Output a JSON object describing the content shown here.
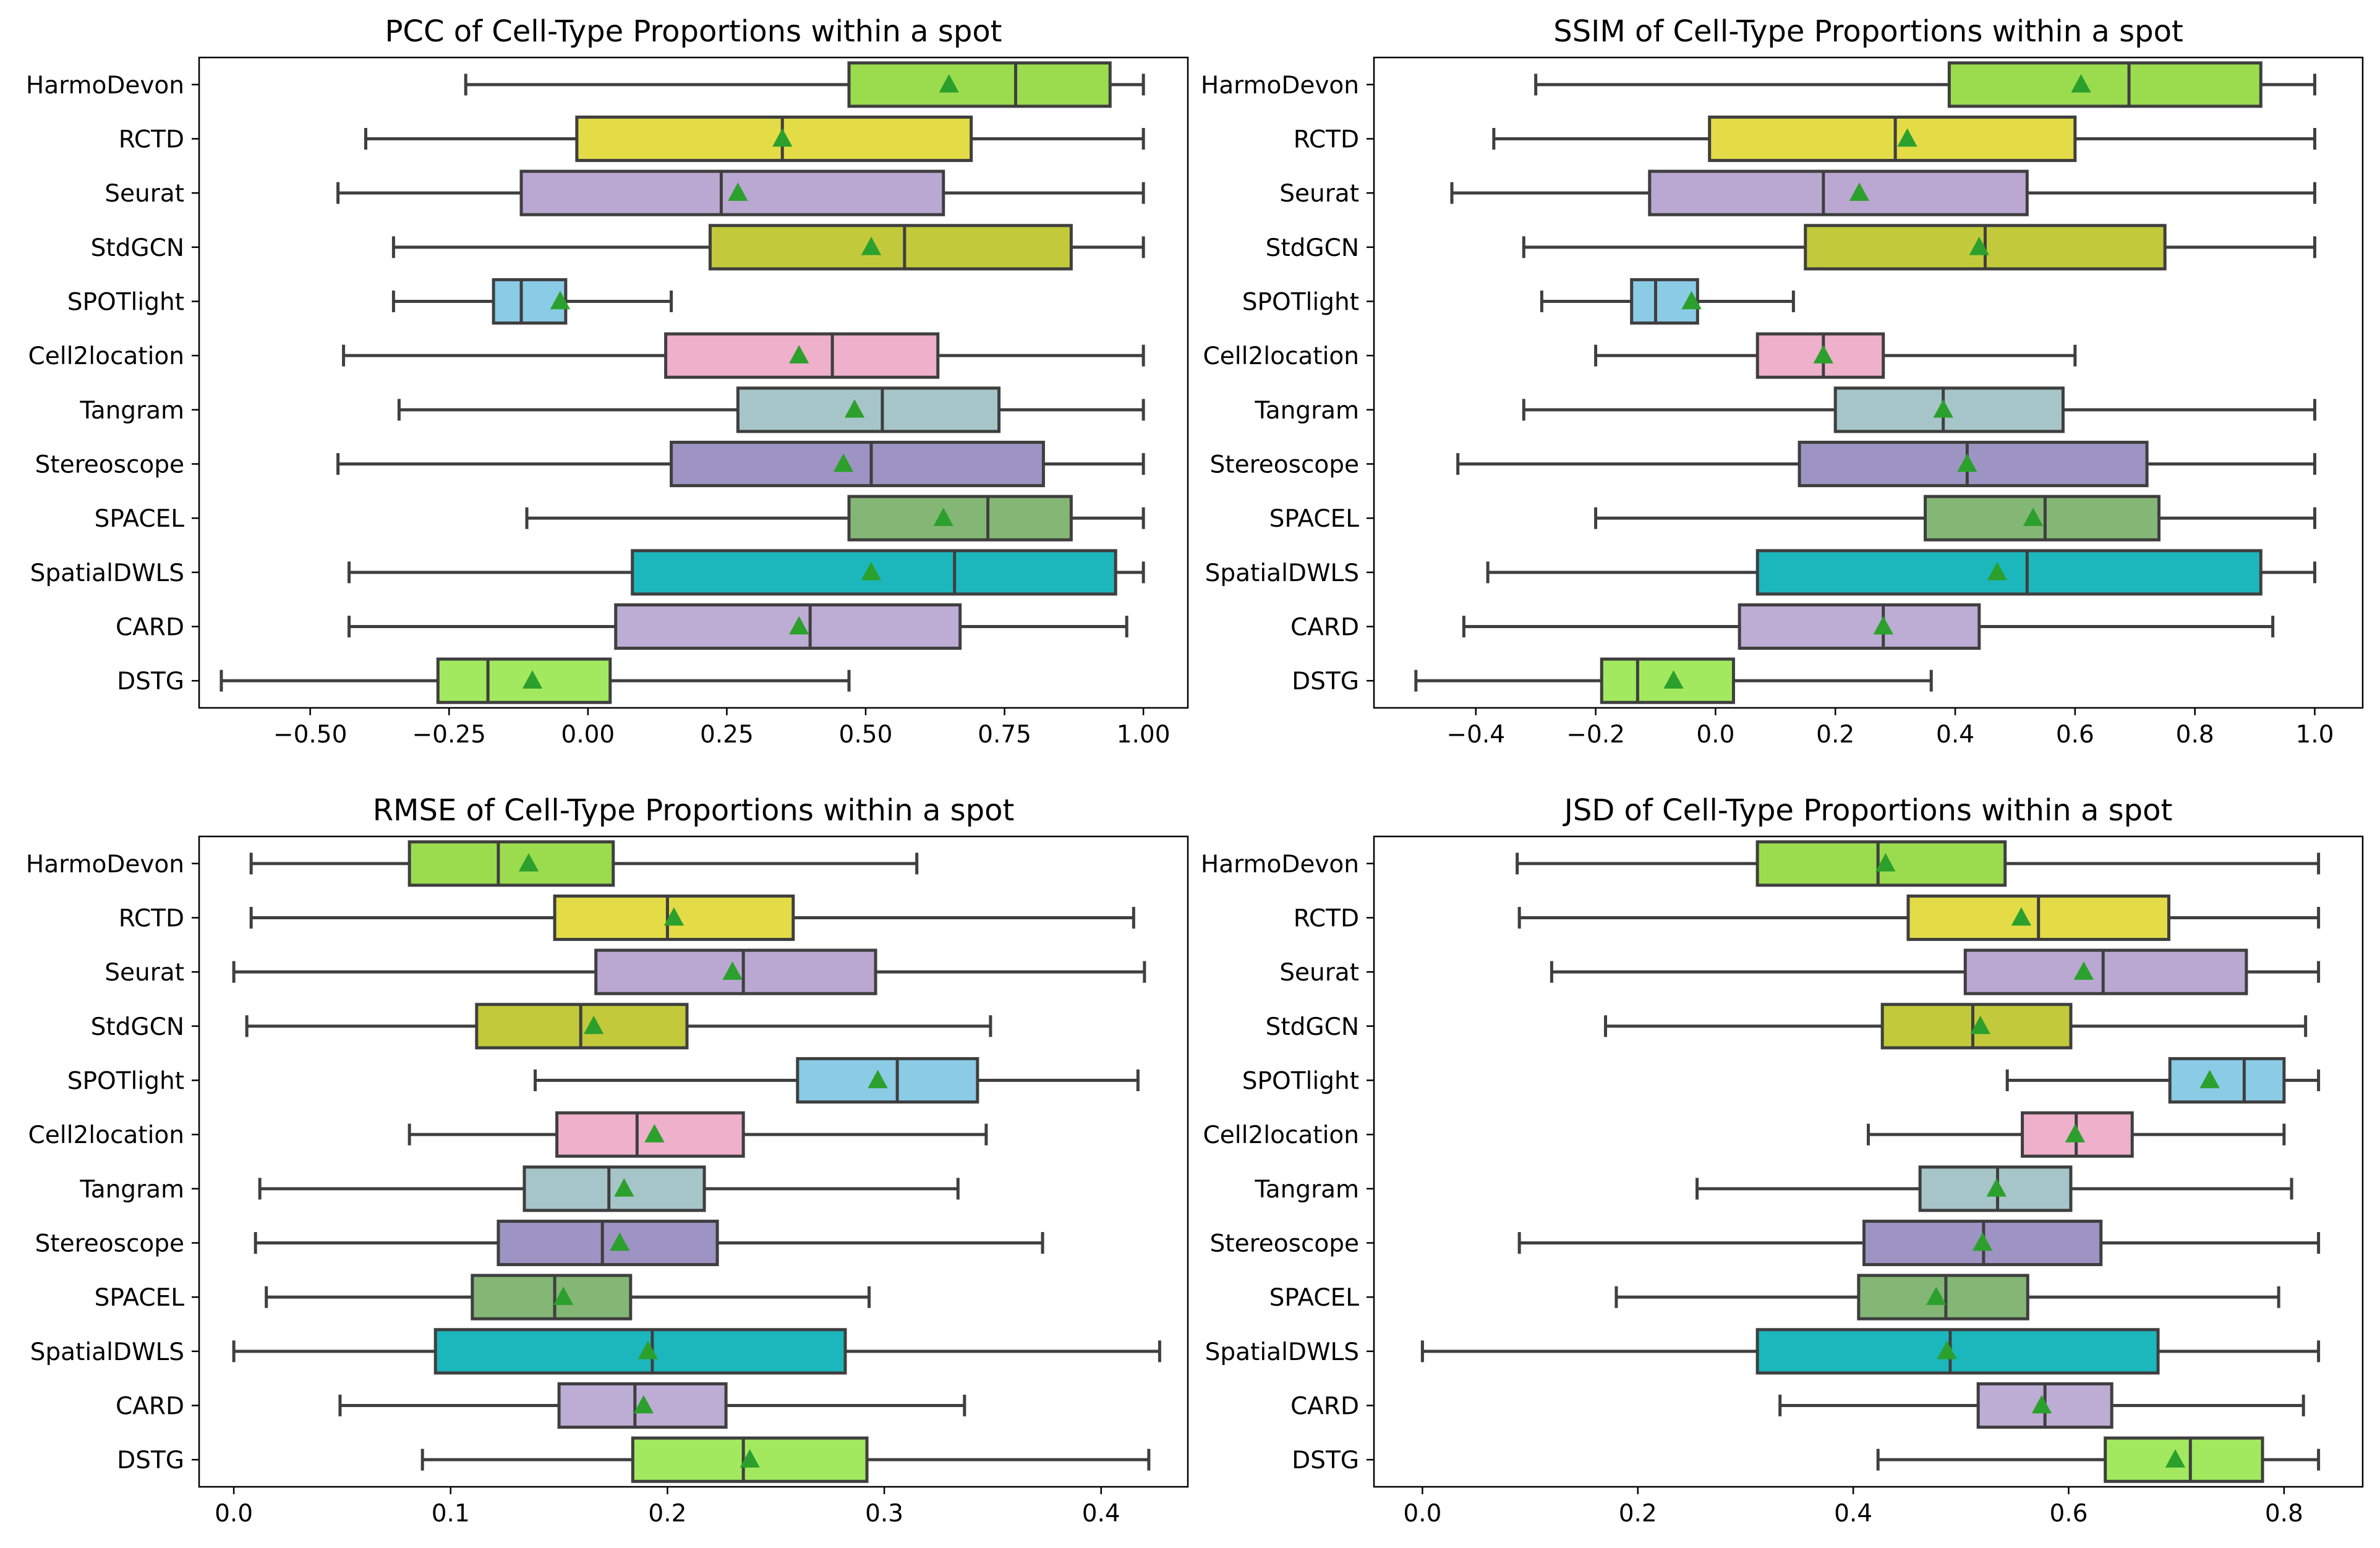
{
  "chart_data": [
    {
      "type": "box",
      "title": "PCC of Cell-Type Proportions within a spot",
      "xlim": [
        -0.7,
        1.08
      ],
      "xticks": [
        -0.5,
        -0.25,
        0.0,
        0.25,
        0.5,
        0.75,
        1.0
      ],
      "xtick_labels": [
        "−0.50",
        "−0.25",
        "0.00",
        "0.25",
        "0.50",
        "0.75",
        "1.00"
      ],
      "series": [
        {
          "label": "HarmoDevon",
          "color": "#9bdc4e",
          "whislo": -0.22,
          "q1": 0.47,
          "median": 0.77,
          "q3": 0.94,
          "whishi": 1.0,
          "mean": 0.65
        },
        {
          "label": "RCTD",
          "color": "#e3dc47",
          "whislo": -0.4,
          "q1": -0.02,
          "median": 0.35,
          "q3": 0.69,
          "whishi": 1.0,
          "mean": 0.35
        },
        {
          "label": "Seurat",
          "color": "#baa8d2",
          "whislo": -0.45,
          "q1": -0.12,
          "median": 0.24,
          "q3": 0.64,
          "whishi": 1.0,
          "mean": 0.27
        },
        {
          "label": "StdGCN",
          "color": "#c2ca3b",
          "whislo": -0.35,
          "q1": 0.22,
          "median": 0.57,
          "q3": 0.87,
          "whishi": 1.0,
          "mean": 0.51
        },
        {
          "label": "SPOTlight",
          "color": "#8acbe6",
          "whislo": -0.35,
          "q1": -0.17,
          "median": -0.12,
          "q3": -0.04,
          "whishi": 0.15,
          "mean": -0.05
        },
        {
          "label": "Cell2location",
          "color": "#eeb0ca",
          "whislo": -0.44,
          "q1": 0.14,
          "median": 0.44,
          "q3": 0.63,
          "whishi": 1.0,
          "mean": 0.38
        },
        {
          "label": "Tangram",
          "color": "#a6c5c9",
          "whislo": -0.34,
          "q1": 0.27,
          "median": 0.53,
          "q3": 0.74,
          "whishi": 1.0,
          "mean": 0.48
        },
        {
          "label": "Stereoscope",
          "color": "#9d94c3",
          "whislo": -0.45,
          "q1": 0.15,
          "median": 0.51,
          "q3": 0.82,
          "whishi": 1.0,
          "mean": 0.46
        },
        {
          "label": "SPACEL",
          "color": "#84b776",
          "whislo": -0.11,
          "q1": 0.47,
          "median": 0.72,
          "q3": 0.87,
          "whishi": 1.0,
          "mean": 0.64
        },
        {
          "label": "SpatialDWLS",
          "color": "#1cb7bd",
          "whislo": -0.43,
          "q1": 0.08,
          "median": 0.66,
          "q3": 0.95,
          "whishi": 1.0,
          "mean": 0.51
        },
        {
          "label": "CARD",
          "color": "#bdadd5",
          "whislo": -0.43,
          "q1": 0.05,
          "median": 0.4,
          "q3": 0.67,
          "whishi": 0.97,
          "mean": 0.38
        },
        {
          "label": "DSTG",
          "color": "#a2e95f",
          "whislo": -0.66,
          "q1": -0.27,
          "median": -0.18,
          "q3": 0.04,
          "whishi": 0.47,
          "mean": -0.1
        }
      ]
    },
    {
      "type": "box",
      "title": "SSIM of Cell-Type Proportions within a spot",
      "xlim": [
        -0.57,
        1.08
      ],
      "xticks": [
        -0.4,
        -0.2,
        0.0,
        0.2,
        0.4,
        0.6,
        0.8,
        1.0
      ],
      "xtick_labels": [
        "−0.4",
        "−0.2",
        "0.0",
        "0.2",
        "0.4",
        "0.6",
        "0.8",
        "1.0"
      ],
      "series": [
        {
          "label": "HarmoDevon",
          "color": "#9bdc4e",
          "whislo": -0.3,
          "q1": 0.39,
          "median": 0.69,
          "q3": 0.91,
          "whishi": 1.0,
          "mean": 0.61
        },
        {
          "label": "RCTD",
          "color": "#e3dc47",
          "whislo": -0.37,
          "q1": -0.01,
          "median": 0.3,
          "q3": 0.6,
          "whishi": 1.0,
          "mean": 0.32
        },
        {
          "label": "Seurat",
          "color": "#baa8d2",
          "whislo": -0.44,
          "q1": -0.11,
          "median": 0.18,
          "q3": 0.52,
          "whishi": 1.0,
          "mean": 0.24
        },
        {
          "label": "StdGCN",
          "color": "#c2ca3b",
          "whislo": -0.32,
          "q1": 0.15,
          "median": 0.45,
          "q3": 0.75,
          "whishi": 1.0,
          "mean": 0.44
        },
        {
          "label": "SPOTlight",
          "color": "#8acbe6",
          "whislo": -0.29,
          "q1": -0.14,
          "median": -0.1,
          "q3": -0.03,
          "whishi": 0.13,
          "mean": -0.04
        },
        {
          "label": "Cell2location",
          "color": "#eeb0ca",
          "whislo": -0.2,
          "q1": 0.07,
          "median": 0.18,
          "q3": 0.28,
          "whishi": 0.6,
          "mean": 0.18
        },
        {
          "label": "Tangram",
          "color": "#a6c5c9",
          "whislo": -0.32,
          "q1": 0.2,
          "median": 0.38,
          "q3": 0.58,
          "whishi": 1.0,
          "mean": 0.38
        },
        {
          "label": "Stereoscope",
          "color": "#9d94c3",
          "whislo": -0.43,
          "q1": 0.14,
          "median": 0.42,
          "q3": 0.72,
          "whishi": 1.0,
          "mean": 0.42
        },
        {
          "label": "SPACEL",
          "color": "#84b776",
          "whislo": -0.2,
          "q1": 0.35,
          "median": 0.55,
          "q3": 0.74,
          "whishi": 1.0,
          "mean": 0.53
        },
        {
          "label": "SpatialDWLS",
          "color": "#1cb7bd",
          "whislo": -0.38,
          "q1": 0.07,
          "median": 0.52,
          "q3": 0.91,
          "whishi": 1.0,
          "mean": 0.47
        },
        {
          "label": "CARD",
          "color": "#bdadd5",
          "whislo": -0.42,
          "q1": 0.04,
          "median": 0.28,
          "q3": 0.44,
          "whishi": 0.93,
          "mean": 0.28
        },
        {
          "label": "DSTG",
          "color": "#a2e95f",
          "whislo": -0.5,
          "q1": -0.19,
          "median": -0.13,
          "q3": 0.03,
          "whishi": 0.36,
          "mean": -0.07
        }
      ]
    },
    {
      "type": "box",
      "title": "RMSE of Cell-Type Proportions within a spot",
      "xlim": [
        -0.016,
        0.44
      ],
      "xticks": [
        0.0,
        0.1,
        0.2,
        0.3,
        0.4
      ],
      "xtick_labels": [
        "0.0",
        "0.1",
        "0.2",
        "0.3",
        "0.4"
      ],
      "series": [
        {
          "label": "HarmoDevon",
          "color": "#9bdc4e",
          "whislo": 0.008,
          "q1": 0.081,
          "median": 0.122,
          "q3": 0.175,
          "whishi": 0.315,
          "mean": 0.136
        },
        {
          "label": "RCTD",
          "color": "#e3dc47",
          "whislo": 0.008,
          "q1": 0.148,
          "median": 0.2,
          "q3": 0.258,
          "whishi": 0.415,
          "mean": 0.203
        },
        {
          "label": "Seurat",
          "color": "#baa8d2",
          "whislo": 0.0,
          "q1": 0.167,
          "median": 0.235,
          "q3": 0.296,
          "whishi": 0.42,
          "mean": 0.23
        },
        {
          "label": "StdGCN",
          "color": "#c2ca3b",
          "whislo": 0.006,
          "q1": 0.112,
          "median": 0.16,
          "q3": 0.209,
          "whishi": 0.349,
          "mean": 0.166
        },
        {
          "label": "SPOTlight",
          "color": "#8acbe6",
          "whislo": 0.139,
          "q1": 0.26,
          "median": 0.306,
          "q3": 0.343,
          "whishi": 0.417,
          "mean": 0.297
        },
        {
          "label": "Cell2location",
          "color": "#eeb0ca",
          "whislo": 0.081,
          "q1": 0.149,
          "median": 0.186,
          "q3": 0.235,
          "whishi": 0.347,
          "mean": 0.194
        },
        {
          "label": "Tangram",
          "color": "#a6c5c9",
          "whislo": 0.012,
          "q1": 0.134,
          "median": 0.173,
          "q3": 0.217,
          "whishi": 0.334,
          "mean": 0.18
        },
        {
          "label": "Stereoscope",
          "color": "#9d94c3",
          "whislo": 0.01,
          "q1": 0.122,
          "median": 0.17,
          "q3": 0.223,
          "whishi": 0.373,
          "mean": 0.178
        },
        {
          "label": "SPACEL",
          "color": "#84b776",
          "whislo": 0.015,
          "q1": 0.11,
          "median": 0.148,
          "q3": 0.183,
          "whishi": 0.293,
          "mean": 0.152
        },
        {
          "label": "SpatialDWLS",
          "color": "#1cb7bd",
          "whislo": 0.0,
          "q1": 0.093,
          "median": 0.193,
          "q3": 0.282,
          "whishi": 0.427,
          "mean": 0.191
        },
        {
          "label": "CARD",
          "color": "#bdadd5",
          "whislo": 0.049,
          "q1": 0.15,
          "median": 0.185,
          "q3": 0.227,
          "whishi": 0.337,
          "mean": 0.189
        },
        {
          "label": "DSTG",
          "color": "#a2e95f",
          "whislo": 0.087,
          "q1": 0.184,
          "median": 0.235,
          "q3": 0.292,
          "whishi": 0.422,
          "mean": 0.238
        }
      ]
    },
    {
      "type": "box",
      "title": "JSD of Cell-Type Proportions within a spot",
      "xlim": [
        -0.045,
        0.873
      ],
      "xticks": [
        0.0,
        0.2,
        0.4,
        0.6,
        0.8
      ],
      "xtick_labels": [
        "0.0",
        "0.2",
        "0.4",
        "0.6",
        "0.8"
      ],
      "series": [
        {
          "label": "HarmoDevon",
          "color": "#9bdc4e",
          "whislo": 0.088,
          "q1": 0.311,
          "median": 0.423,
          "q3": 0.541,
          "whishi": 0.832,
          "mean": 0.43
        },
        {
          "label": "RCTD",
          "color": "#e3dc47",
          "whislo": 0.09,
          "q1": 0.451,
          "median": 0.572,
          "q3": 0.693,
          "whishi": 0.832,
          "mean": 0.556
        },
        {
          "label": "Seurat",
          "color": "#baa8d2",
          "whislo": 0.12,
          "q1": 0.504,
          "median": 0.632,
          "q3": 0.765,
          "whishi": 0.832,
          "mean": 0.614
        },
        {
          "label": "StdGCN",
          "color": "#c2ca3b",
          "whislo": 0.17,
          "q1": 0.427,
          "median": 0.511,
          "q3": 0.602,
          "whishi": 0.82,
          "mean": 0.518
        },
        {
          "label": "SPOTlight",
          "color": "#8acbe6",
          "whislo": 0.543,
          "q1": 0.694,
          "median": 0.763,
          "q3": 0.8,
          "whishi": 0.832,
          "mean": 0.731
        },
        {
          "label": "Cell2location",
          "color": "#eeb0ca",
          "whislo": 0.414,
          "q1": 0.557,
          "median": 0.607,
          "q3": 0.659,
          "whishi": 0.8,
          "mean": 0.606
        },
        {
          "label": "Tangram",
          "color": "#a6c5c9",
          "whislo": 0.255,
          "q1": 0.462,
          "median": 0.534,
          "q3": 0.602,
          "whishi": 0.807,
          "mean": 0.533
        },
        {
          "label": "Stereoscope",
          "color": "#9d94c3",
          "whislo": 0.09,
          "q1": 0.41,
          "median": 0.521,
          "q3": 0.63,
          "whishi": 0.832,
          "mean": 0.52
        },
        {
          "label": "SPACEL",
          "color": "#84b776",
          "whislo": 0.18,
          "q1": 0.405,
          "median": 0.486,
          "q3": 0.562,
          "whishi": 0.795,
          "mean": 0.477
        },
        {
          "label": "SpatialDWLS",
          "color": "#1cb7bd",
          "whislo": 0.0,
          "q1": 0.311,
          "median": 0.49,
          "q3": 0.683,
          "whishi": 0.832,
          "mean": 0.487
        },
        {
          "label": "CARD",
          "color": "#bdadd5",
          "whislo": 0.332,
          "q1": 0.516,
          "median": 0.578,
          "q3": 0.64,
          "whishi": 0.818,
          "mean": 0.575
        },
        {
          "label": "DSTG",
          "color": "#a2e95f",
          "whislo": 0.423,
          "q1": 0.634,
          "median": 0.713,
          "q3": 0.78,
          "whishi": 0.832,
          "mean": 0.699
        }
      ]
    }
  ],
  "colors": {
    "mean_marker": "#2ca02c",
    "box_edge": "#3f3f3f",
    "axes": "#000000",
    "background": "#ffffff"
  }
}
